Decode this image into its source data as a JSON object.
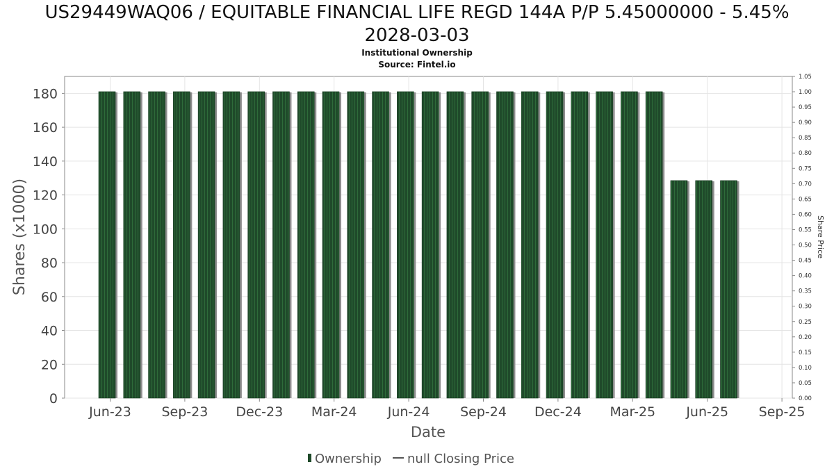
{
  "title_line1": "US29449WAQ06 / EQUITABLE FINANCIAL LIFE REGD 144A P/P 5.45000000 - 5.45%",
  "title_line2": "2028-03-03",
  "subtitle": "Institutional Ownership",
  "source": "Source: Fintel.io",
  "chart_data": {
    "type": "bar",
    "xlabel": "Date",
    "ylabel": "Shares (x1000)",
    "y2label": "Share Price",
    "ylim": [
      0,
      190
    ],
    "y2lim": [
      0,
      1.05
    ],
    "yticks": [
      0,
      20,
      40,
      60,
      80,
      100,
      120,
      140,
      160,
      180
    ],
    "y2ticks": [
      "0.00",
      "0.05",
      "0.10",
      "0.15",
      "0.20",
      "0.25",
      "0.30",
      "0.35",
      "0.40",
      "0.45",
      "0.50",
      "0.55",
      "0.60",
      "0.65",
      "0.70",
      "0.75",
      "0.80",
      "0.85",
      "0.90",
      "0.95",
      "1.00",
      "1.05"
    ],
    "xticks": [
      "Jun-23",
      "Sep-23",
      "Dec-23",
      "Mar-24",
      "Jun-24",
      "Sep-24",
      "Dec-24",
      "Mar-25",
      "Jun-25",
      "Sep-25"
    ],
    "grid": true,
    "legend_position": "bottom",
    "series": [
      {
        "name": "Ownership",
        "color": "#1f4a2a",
        "values": [
          181,
          181,
          181,
          181,
          181,
          181,
          181,
          181,
          181,
          181,
          181,
          181,
          181,
          181,
          181,
          181,
          181,
          181,
          181,
          181,
          181,
          181,
          181,
          128.5,
          128.5,
          128.5
        ]
      },
      {
        "name": "null Closing Price",
        "color": "#555555",
        "values": []
      }
    ]
  }
}
